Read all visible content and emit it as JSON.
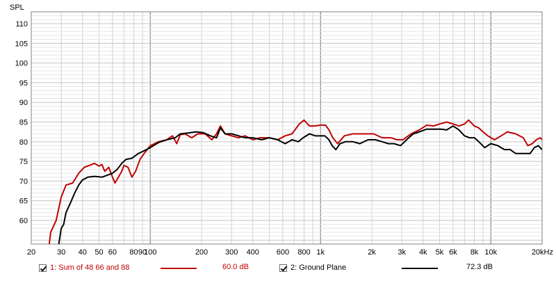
{
  "chart_data": {
    "type": "line",
    "ylabel": "SPL",
    "xunit_label": "20kHz",
    "xscale": "log",
    "xlim": [
      20,
      20000
    ],
    "ylim": [
      54,
      113
    ],
    "y_ticks": [
      60,
      65,
      70,
      75,
      80,
      85,
      90,
      95,
      100,
      105,
      110
    ],
    "x_ticks": [
      {
        "v": 20,
        "label": "20"
      },
      {
        "v": 30,
        "label": "30"
      },
      {
        "v": 40,
        "label": "40"
      },
      {
        "v": 50,
        "label": "50"
      },
      {
        "v": 60,
        "label": "60"
      },
      {
        "v": 80,
        "label": "80"
      },
      {
        "v": 90,
        "label": "90"
      },
      {
        "v": 100,
        "label": "100"
      },
      {
        "v": 200,
        "label": "200"
      },
      {
        "v": 300,
        "label": "300"
      },
      {
        "v": 400,
        "label": "400"
      },
      {
        "v": 600,
        "label": "600"
      },
      {
        "v": 800,
        "label": "800"
      },
      {
        "v": 1000,
        "label": "1k"
      },
      {
        "v": 2000,
        "label": "2k"
      },
      {
        "v": 3000,
        "label": "3k"
      },
      {
        "v": 4000,
        "label": "4k"
      },
      {
        "v": 5000,
        "label": "5k"
      },
      {
        "v": 6000,
        "label": "6k"
      },
      {
        "v": 8000,
        "label": "8k"
      },
      {
        "v": 10000,
        "label": "10k"
      }
    ],
    "grid": true,
    "legend": "bottom",
    "series": [
      {
        "name": "1: Sum of 48 66 and 88",
        "value_label": "60.0 dB",
        "color": "#c00000",
        "points": [
          [
            25.5,
            54
          ],
          [
            26,
            57
          ],
          [
            28,
            60
          ],
          [
            30,
            66
          ],
          [
            32,
            69
          ],
          [
            35,
            69.5
          ],
          [
            38,
            72
          ],
          [
            41,
            73.5
          ],
          [
            44,
            74
          ],
          [
            47,
            74.5
          ],
          [
            50,
            73.8
          ],
          [
            52,
            74.2
          ],
          [
            54,
            72.5
          ],
          [
            57,
            73.5
          ],
          [
            60,
            71
          ],
          [
            62,
            69.5
          ],
          [
            65,
            71
          ],
          [
            68,
            72.5
          ],
          [
            70,
            74
          ],
          [
            74,
            73.5
          ],
          [
            78,
            71
          ],
          [
            82,
            72.5
          ],
          [
            87,
            75.5
          ],
          [
            92,
            77
          ],
          [
            100,
            79
          ],
          [
            112,
            80
          ],
          [
            125,
            80.5
          ],
          [
            135,
            81.5
          ],
          [
            143,
            79.5
          ],
          [
            150,
            81.8
          ],
          [
            160,
            82
          ],
          [
            175,
            81
          ],
          [
            190,
            82
          ],
          [
            210,
            82
          ],
          [
            230,
            80.5
          ],
          [
            245,
            82
          ],
          [
            258,
            84
          ],
          [
            275,
            82
          ],
          [
            300,
            81.5
          ],
          [
            330,
            81
          ],
          [
            360,
            81.5
          ],
          [
            400,
            80.5
          ],
          [
            440,
            81
          ],
          [
            500,
            81
          ],
          [
            560,
            80.5
          ],
          [
            620,
            81.5
          ],
          [
            680,
            82
          ],
          [
            750,
            84.5
          ],
          [
            800,
            85.5
          ],
          [
            860,
            84
          ],
          [
            920,
            84
          ],
          [
            1000,
            84.2
          ],
          [
            1070,
            84.2
          ],
          [
            1120,
            83
          ],
          [
            1180,
            81
          ],
          [
            1260,
            79.5
          ],
          [
            1380,
            81.5
          ],
          [
            1550,
            82
          ],
          [
            1800,
            82
          ],
          [
            2050,
            82
          ],
          [
            2300,
            81
          ],
          [
            2600,
            81
          ],
          [
            2800,
            80.5
          ],
          [
            3050,
            80.5
          ],
          [
            3400,
            82
          ],
          [
            3800,
            83
          ],
          [
            4200,
            84.2
          ],
          [
            4600,
            84
          ],
          [
            5000,
            84.5
          ],
          [
            5500,
            85
          ],
          [
            6000,
            84.5
          ],
          [
            6500,
            84
          ],
          [
            7000,
            84.5
          ],
          [
            7400,
            85.5
          ],
          [
            8000,
            84
          ],
          [
            8500,
            83.5
          ],
          [
            9000,
            82.5
          ],
          [
            9600,
            81.5
          ],
          [
            10500,
            80.5
          ],
          [
            11500,
            81.5
          ],
          [
            12500,
            82.5
          ],
          [
            14000,
            82
          ],
          [
            15500,
            81
          ],
          [
            16500,
            79
          ],
          [
            17500,
            79.5
          ],
          [
            18500,
            80.5
          ],
          [
            19500,
            81
          ],
          [
            20000,
            80.5
          ]
        ]
      },
      {
        "name": "2: Ground Plane",
        "value_label": "72.3 dB",
        "color": "#000000",
        "points": [
          [
            29,
            54
          ],
          [
            30,
            58
          ],
          [
            31,
            59
          ],
          [
            32,
            62
          ],
          [
            34,
            64.5
          ],
          [
            36,
            67
          ],
          [
            38,
            69
          ],
          [
            40,
            70.3
          ],
          [
            43,
            71
          ],
          [
            47,
            71.2
          ],
          [
            52,
            71
          ],
          [
            56,
            71.5
          ],
          [
            60,
            72
          ],
          [
            64,
            73
          ],
          [
            68,
            74.5
          ],
          [
            72,
            75.5
          ],
          [
            78,
            75.8
          ],
          [
            85,
            77
          ],
          [
            90,
            77.5
          ],
          [
            100,
            78.5
          ],
          [
            112,
            79.8
          ],
          [
            125,
            80.5
          ],
          [
            140,
            81
          ],
          [
            150,
            82
          ],
          [
            165,
            82.2
          ],
          [
            185,
            82.5
          ],
          [
            205,
            82.3
          ],
          [
            225,
            81.5
          ],
          [
            245,
            81
          ],
          [
            258,
            83.5
          ],
          [
            275,
            82
          ],
          [
            300,
            82
          ],
          [
            330,
            81.5
          ],
          [
            360,
            81
          ],
          [
            400,
            81
          ],
          [
            450,
            80.5
          ],
          [
            500,
            81
          ],
          [
            560,
            80.5
          ],
          [
            620,
            79.5
          ],
          [
            680,
            80.5
          ],
          [
            740,
            80
          ],
          [
            790,
            81
          ],
          [
            860,
            82
          ],
          [
            930,
            81.5
          ],
          [
            1000,
            81.5
          ],
          [
            1060,
            81.5
          ],
          [
            1120,
            80.5
          ],
          [
            1170,
            79
          ],
          [
            1230,
            78
          ],
          [
            1300,
            79.5
          ],
          [
            1400,
            80
          ],
          [
            1550,
            80
          ],
          [
            1700,
            79.5
          ],
          [
            1900,
            80.5
          ],
          [
            2100,
            80.5
          ],
          [
            2300,
            80
          ],
          [
            2500,
            79.5
          ],
          [
            2700,
            79.5
          ],
          [
            2950,
            79
          ],
          [
            3200,
            80.5
          ],
          [
            3500,
            82
          ],
          [
            3800,
            82.5
          ],
          [
            4200,
            83.2
          ],
          [
            4700,
            83.2
          ],
          [
            5100,
            83.2
          ],
          [
            5500,
            83
          ],
          [
            6000,
            84
          ],
          [
            6500,
            83
          ],
          [
            7000,
            81.5
          ],
          [
            7500,
            81
          ],
          [
            8000,
            81
          ],
          [
            8500,
            80
          ],
          [
            9200,
            78.5
          ],
          [
            10000,
            79.5
          ],
          [
            11000,
            79
          ],
          [
            12000,
            78
          ],
          [
            13000,
            78
          ],
          [
            14000,
            77
          ],
          [
            15500,
            77
          ],
          [
            17000,
            77
          ],
          [
            18000,
            78.5
          ],
          [
            19000,
            79
          ],
          [
            20000,
            78
          ]
        ]
      }
    ]
  }
}
